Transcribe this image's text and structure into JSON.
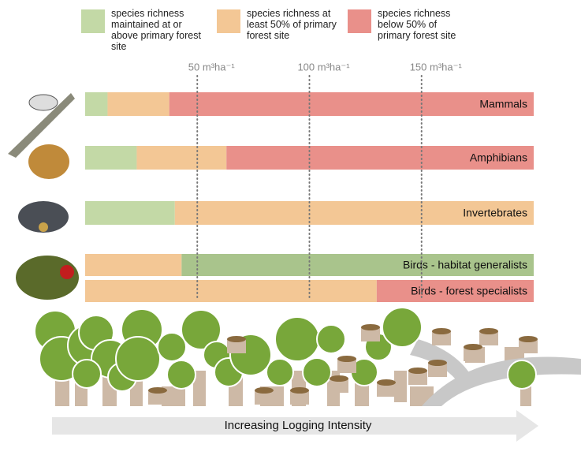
{
  "chart_data": {
    "type": "stacked-barh",
    "legend": [
      {
        "name": "species richness maintained at or above primary forest site",
        "color": "#c3d9a6"
      },
      {
        "name": "species richness at least 50% of primary forest site",
        "color": "#f3c795"
      },
      {
        "name": "species richness below 50% of primary forest site",
        "color": "#e9908a"
      }
    ],
    "bars": [
      {
        "label": "Mammals",
        "segments": [
          {
            "color": "#c3d9a6",
            "value": 10
          },
          {
            "color": "#f3c795",
            "value": 27.5
          },
          {
            "color": "#e9908a",
            "value": 162.5
          }
        ]
      },
      {
        "label": "Amphibians",
        "segments": [
          {
            "color": "#c3d9a6",
            "value": 23
          },
          {
            "color": "#f3c795",
            "value": 40
          },
          {
            "color": "#e9908a",
            "value": 137
          }
        ]
      },
      {
        "label": "Invertebrates",
        "segments": [
          {
            "color": "#c3d9a6",
            "value": 40
          },
          {
            "color": "#f3c795",
            "value": 160
          }
        ]
      },
      {
        "label": "Birds - habitat generalists",
        "segments": [
          {
            "color": "#f3c795",
            "value": 43
          },
          {
            "color": "#a9c48c",
            "value": 157
          }
        ]
      },
      {
        "label": "Birds - forest specialists",
        "segments": [
          {
            "color": "#f3c795",
            "value": 130
          },
          {
            "color": "#e9908a",
            "value": 70
          }
        ]
      }
    ],
    "xlim": [
      0,
      200
    ],
    "xticks": [
      {
        "value": 50,
        "label": "50 m³ha⁻¹"
      },
      {
        "value": 100,
        "label": "100 m³ha⁻¹"
      },
      {
        "value": 150,
        "label": "150 m³ha⁻¹"
      }
    ],
    "xlabel": "Increasing Logging Intensity"
  }
}
